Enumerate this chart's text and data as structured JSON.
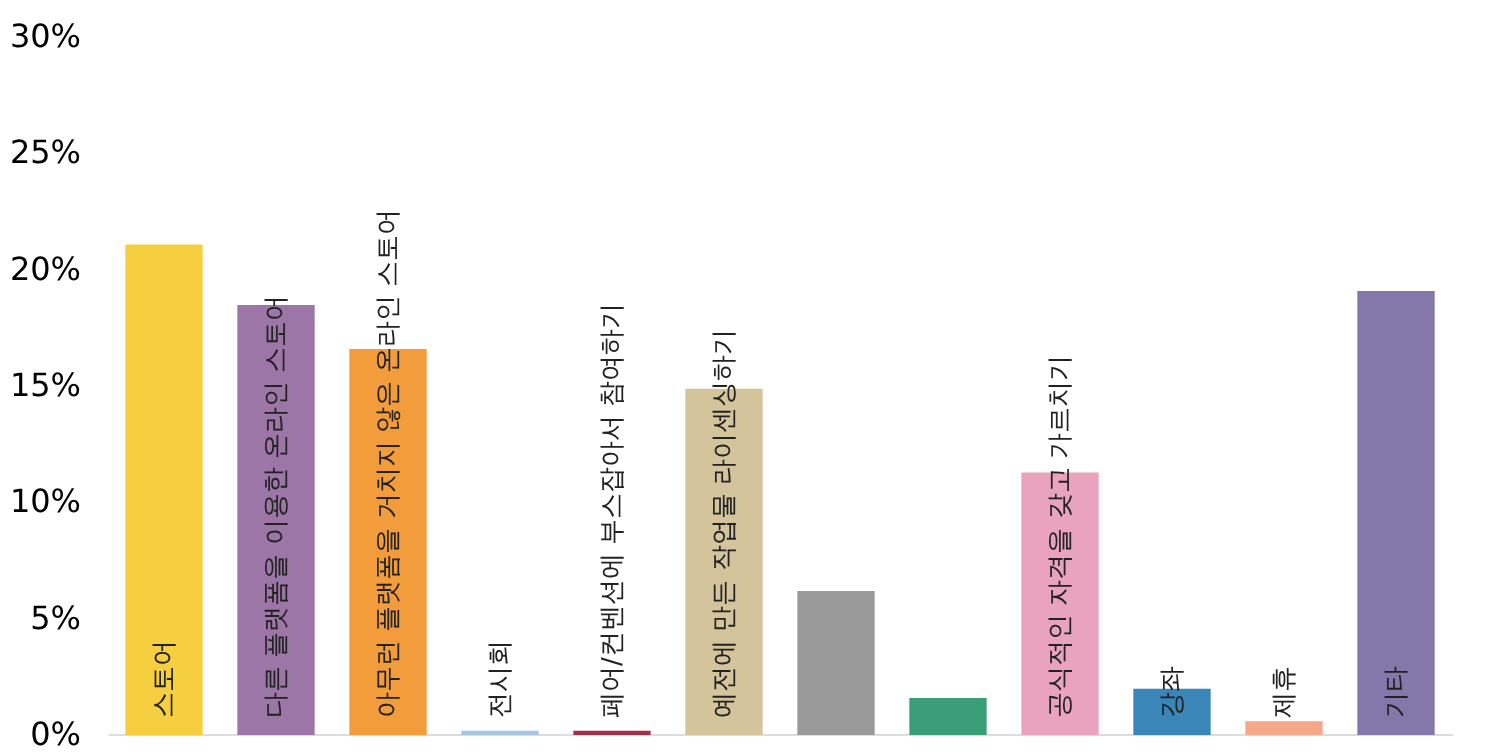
{
  "chart_data": {
    "type": "bar",
    "categories": [
      "스토어",
      "다른 플랫폼을 이용한 온라인 스토어",
      "아무런 플랫폼을 거치지 않은 온라인 스토어",
      "전시회",
      "페어/컨벤션에 부스잡아서 참여하기",
      "예전에 만든 작업물 라이센싱하기",
      null,
      null,
      "공식적인 자격을 갖고 가르치기",
      "강좌",
      "제휴",
      "기타"
    ],
    "values": [
      21,
      18.4,
      16.5,
      0.1,
      0.1,
      14.8,
      6.1,
      1.5,
      11.2,
      1.9,
      0.5,
      19.0
    ],
    "colors": [
      "#f5cf3f",
      "#9b76a6",
      "#f39c3c",
      "#a8c4e0",
      "#a0304a",
      "#d3c49b",
      "#999999",
      "#3a9e78",
      "#e9a3bc",
      "#3a86b9",
      "#f5a88a",
      "#8477aa"
    ],
    "ylim": [
      0,
      30
    ],
    "yticks": [
      {
        "value": 0,
        "label": "0%"
      },
      {
        "value": 5,
        "label": "5%"
      },
      {
        "value": 10,
        "label": "10%"
      },
      {
        "value": 15,
        "label": "15%"
      },
      {
        "value": 20,
        "label": "20%"
      },
      {
        "value": 25,
        "label": "25%"
      },
      {
        "value": 30,
        "label": "30%"
      }
    ],
    "grid": false
  }
}
